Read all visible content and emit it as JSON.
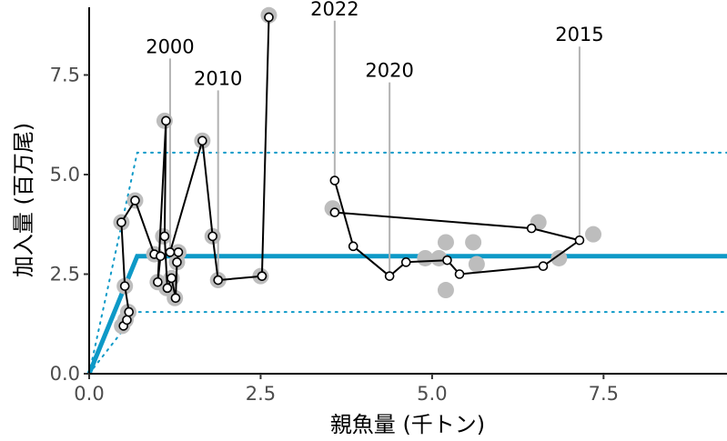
{
  "chart_data": {
    "type": "line",
    "xlabel": "親魚量 (千トン)",
    "ylabel": "加入量 (百万尾)",
    "xlim": [
      0,
      9.3
    ],
    "ylim": [
      0,
      9.2
    ],
    "xticks": [
      0,
      2.5,
      5,
      7.5
    ],
    "xtick_labels": [
      "0.0",
      "2.5",
      "5.0",
      "7.5"
    ],
    "yticks": [
      0,
      2.5,
      5,
      7.5
    ],
    "ytick_labels": [
      "0.0",
      "2.5",
      "5.0",
      "7.5"
    ],
    "grid": false,
    "colors": {
      "fit": "#0d99c7",
      "observed": "#bdbdbd",
      "path": "#000000"
    },
    "fit_line": {
      "x": [
        0,
        0.7,
        9.3
      ],
      "y": [
        0,
        2.95,
        2.95
      ]
    },
    "upper_band": {
      "x": [
        0,
        0.7,
        9.3
      ],
      "y": [
        0,
        5.55,
        5.55
      ]
    },
    "lower_band": {
      "x": [
        0,
        0.7,
        9.3
      ],
      "y": [
        0,
        1.55,
        1.55
      ]
    },
    "observed": [
      {
        "x": 0.48,
        "y": 1.2
      },
      {
        "x": 0.53,
        "y": 1.35
      },
      {
        "x": 0.57,
        "y": 1.55
      },
      {
        "x": 0.52,
        "y": 2.2
      },
      {
        "x": 0.47,
        "y": 3.8
      },
      {
        "x": 0.67,
        "y": 4.35
      },
      {
        "x": 0.95,
        "y": 3.0
      },
      {
        "x": 1.0,
        "y": 2.3
      },
      {
        "x": 1.08,
        "y": 3.45
      },
      {
        "x": 1.1,
        "y": 6.35
      },
      {
        "x": 1.13,
        "y": 2.15
      },
      {
        "x": 1.2,
        "y": 2.4
      },
      {
        "x": 1.25,
        "y": 1.9
      },
      {
        "x": 1.28,
        "y": 2.8
      },
      {
        "x": 1.3,
        "y": 3.05
      },
      {
        "x": 1.65,
        "y": 5.85
      },
      {
        "x": 1.8,
        "y": 3.45
      },
      {
        "x": 1.88,
        "y": 2.35
      },
      {
        "x": 2.5,
        "y": 2.45
      },
      {
        "x": 2.62,
        "y": 9.0
      },
      {
        "x": 3.55,
        "y": 4.15
      },
      {
        "x": 4.9,
        "y": 2.9
      },
      {
        "x": 5.1,
        "y": 2.9
      },
      {
        "x": 5.2,
        "y": 3.3
      },
      {
        "x": 5.2,
        "y": 2.1
      },
      {
        "x": 5.6,
        "y": 3.3
      },
      {
        "x": 5.65,
        "y": 2.75
      },
      {
        "x": 6.55,
        "y": 3.8
      },
      {
        "x": 6.85,
        "y": 2.9
      },
      {
        "x": 7.35,
        "y": 3.5
      }
    ],
    "trajectory": [
      {
        "x": 0.5,
        "y": 1.2
      },
      {
        "x": 0.55,
        "y": 1.35
      },
      {
        "x": 0.58,
        "y": 1.55
      },
      {
        "x": 0.52,
        "y": 2.2
      },
      {
        "x": 0.47,
        "y": 3.8
      },
      {
        "x": 0.67,
        "y": 4.35
      },
      {
        "x": 0.95,
        "y": 3.0
      },
      {
        "x": 1.04,
        "y": 2.95
      },
      {
        "x": 1.0,
        "y": 2.3
      },
      {
        "x": 1.12,
        "y": 6.35
      },
      {
        "x": 1.1,
        "y": 3.45
      },
      {
        "x": 1.14,
        "y": 2.15
      },
      {
        "x": 1.2,
        "y": 2.4
      },
      {
        "x": 1.26,
        "y": 1.9
      },
      {
        "x": 1.28,
        "y": 2.8
      },
      {
        "x": 1.3,
        "y": 3.05
      },
      {
        "x": 1.18,
        "y": 3.05
      },
      {
        "x": 1.65,
        "y": 5.85
      },
      {
        "x": 1.8,
        "y": 3.45
      },
      {
        "x": 1.88,
        "y": 2.35
      },
      {
        "x": 2.52,
        "y": 2.45
      },
      {
        "x": 2.62,
        "y": 8.95
      },
      {
        "x": 2.52,
        "y": 2.45
      }
    ],
    "trajectory2": [
      {
        "x": 3.58,
        "y": 4.85
      },
      {
        "x": 3.85,
        "y": 3.2
      },
      {
        "x": 4.38,
        "y": 2.45
      },
      {
        "x": 4.62,
        "y": 2.8
      },
      {
        "x": 5.22,
        "y": 2.85
      },
      {
        "x": 5.4,
        "y": 2.5
      },
      {
        "x": 6.62,
        "y": 2.7
      },
      {
        "x": 7.15,
        "y": 3.35
      },
      {
        "x": 6.45,
        "y": 3.65
      },
      {
        "x": 3.58,
        "y": 4.05
      }
    ],
    "annotations": [
      {
        "label": "2000",
        "year_x": 1.18,
        "year_y": 3.05,
        "text_y": 8.05
      },
      {
        "label": "2010",
        "year_x": 1.88,
        "year_y": 2.35,
        "text_y": 7.25
      },
      {
        "label": "2022",
        "year_x": 3.58,
        "year_y": 4.85,
        "text_y": 9.0
      },
      {
        "label": "2020",
        "year_x": 4.38,
        "year_y": 2.45,
        "text_y": 7.45
      },
      {
        "label": "2015",
        "year_x": 7.15,
        "year_y": 3.35,
        "text_y": 8.35
      }
    ]
  }
}
